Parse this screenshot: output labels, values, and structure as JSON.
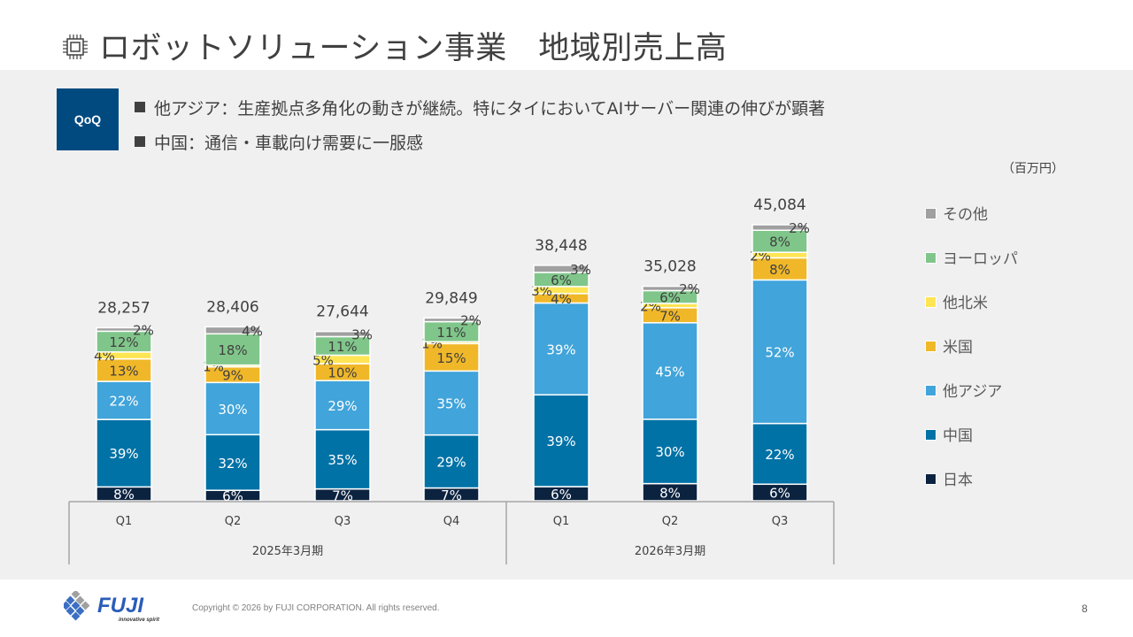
{
  "header": {
    "title": "ロボットソリューション事業　地域別売上高",
    "icon": "chip-icon"
  },
  "commentary": {
    "badge": "QoQ",
    "bullets": [
      "他アジア：生産拠点多角化の動きが継続。特にタイにおいてAIサーバー関連の伸びが顕著",
      "中国：通信・車載向け需要に一服感"
    ]
  },
  "unit_label": "（百万円）",
  "chart_data": {
    "type": "bar",
    "stacked": true,
    "title": "ロボットソリューション事業　地域別売上高",
    "unit": "百万円",
    "categories": [
      "Q1",
      "Q2",
      "Q3",
      "Q4",
      "Q1",
      "Q2",
      "Q3"
    ],
    "category_groups": [
      {
        "label": "2025年3月期",
        "count": 4
      },
      {
        "label": "2026年3月期",
        "count": 3
      }
    ],
    "totals": [
      28257,
      28406,
      27644,
      29849,
      38448,
      35028,
      45084
    ],
    "total_labels": [
      "28,257",
      "28,406",
      "27,644",
      "29,849",
      "38,448",
      "35,028",
      "45,084"
    ],
    "series": [
      {
        "name": "日本",
        "color": "#0c2340",
        "label_color": "#ffffff",
        "values": [
          8,
          6,
          7,
          7,
          6,
          8,
          6
        ]
      },
      {
        "name": "中国",
        "color": "#0072a6",
        "label_color": "#ffffff",
        "values": [
          39,
          32,
          35,
          29,
          39,
          30,
          22
        ]
      },
      {
        "name": "他アジア",
        "color": "#41a4da",
        "label_color": "#ffffff",
        "values": [
          22,
          30,
          29,
          35,
          39,
          45,
          52
        ]
      },
      {
        "name": "米国",
        "color": "#f0b829",
        "label_color": "#404040",
        "values": [
          13,
          9,
          10,
          15,
          4,
          7,
          8
        ]
      },
      {
        "name": "他北米",
        "color": "#ffe454",
        "label_color": "#404040",
        "values": [
          4,
          1,
          5,
          1,
          3,
          2,
          2
        ]
      },
      {
        "name": "ヨーロッパ",
        "color": "#80c68a",
        "label_color": "#404040",
        "values": [
          12,
          18,
          11,
          11,
          6,
          6,
          8
        ]
      },
      {
        "name": "その他",
        "color": "#a0a0a0",
        "label_color": "#404040",
        "values": [
          2,
          4,
          3,
          2,
          3,
          2,
          2
        ]
      }
    ],
    "value_format": "percent of total",
    "legend_position": "right",
    "legend_order": [
      "その他",
      "ヨーロッパ",
      "他北米",
      "米国",
      "他アジア",
      "中国",
      "日本"
    ],
    "grid": false,
    "ylim": [
      0,
      45084
    ]
  },
  "footer": {
    "brand": "FUJI",
    "tagline": "innovative spirit",
    "copyright": "Copyright © 2026 by FUJI CORPORATION. All rights reserved.",
    "page_number": "8"
  }
}
